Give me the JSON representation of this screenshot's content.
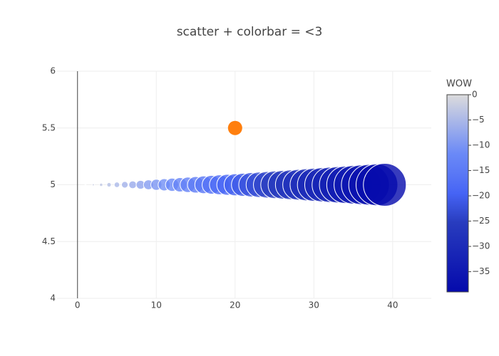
{
  "chart_data": {
    "type": "scatter",
    "title": "scatter + colorbar = <3",
    "xlim": [
      -2.6,
      44.9
    ],
    "ylim": [
      4,
      6
    ],
    "xticks": [
      0,
      10,
      20,
      30,
      40
    ],
    "yticks": [
      4,
      4.5,
      5,
      5.5,
      6
    ],
    "grid": true,
    "series": [
      {
        "x": [
          0,
          1,
          2,
          3,
          4,
          5,
          6,
          7,
          8,
          9,
          10,
          11,
          12,
          13,
          14,
          15,
          16,
          17,
          18,
          19,
          20,
          21,
          22,
          23,
          24,
          25,
          26,
          27,
          28,
          29,
          30,
          31,
          32,
          33,
          34,
          35,
          36,
          37,
          38,
          39
        ],
        "values": [
          5,
          5,
          5,
          5,
          5,
          5,
          5,
          5,
          5,
          5,
          5,
          5,
          5,
          5,
          5,
          5,
          5,
          5,
          5,
          5,
          5,
          5,
          5,
          5,
          5,
          5,
          5,
          5,
          5,
          5,
          5,
          5,
          5,
          5,
          5,
          5,
          5,
          5,
          5,
          5
        ],
        "sizes": [
          0,
          1,
          2,
          3,
          4,
          5,
          6,
          7,
          8,
          9,
          10,
          11,
          12,
          13,
          14,
          15,
          16,
          17,
          18,
          19,
          20,
          21,
          22,
          23,
          24,
          25,
          26,
          27,
          28,
          29,
          30,
          31,
          32,
          33,
          34,
          35,
          36,
          37,
          38,
          39
        ],
        "colors": [
          0,
          -1,
          -2,
          -3,
          -4,
          -5,
          -6,
          -7,
          -8,
          -9,
          -10,
          -11,
          -12,
          -13,
          -14,
          -15,
          -16,
          -17,
          -18,
          -19,
          -20,
          -21,
          -22,
          -23,
          -24,
          -25,
          -26,
          -27,
          -28,
          -29,
          -30,
          -31,
          -32,
          -33,
          -34,
          -35,
          -36,
          -37,
          -38,
          -39
        ]
      },
      {
        "x": [
          20
        ],
        "values": [
          5.5
        ],
        "color": "#ff7f0e"
      }
    ],
    "colorbar": {
      "title": "WOW",
      "lim": [
        -39,
        0
      ],
      "ticks": [
        0,
        {
          "value": -5,
          "label": "−5"
        },
        {
          "value": -10,
          "label": "−10"
        },
        {
          "value": -15,
          "label": "−15"
        },
        {
          "value": -20,
          "label": "−20"
        },
        {
          "value": -25,
          "label": "−25"
        },
        {
          "value": -30,
          "label": "−30"
        },
        {
          "value": -35,
          "label": "−35"
        }
      ],
      "colorscale": [
        [
          0,
          "rgb(5,10,172)"
        ],
        [
          0.35,
          "rgb(40,60,190)"
        ],
        [
          0.5,
          "rgb(70,100,245)"
        ],
        [
          0.6,
          "rgb(90,120,245)"
        ],
        [
          0.7,
          "rgb(106,137,247)"
        ],
        [
          1,
          "rgb(220,220,220)"
        ]
      ]
    }
  }
}
